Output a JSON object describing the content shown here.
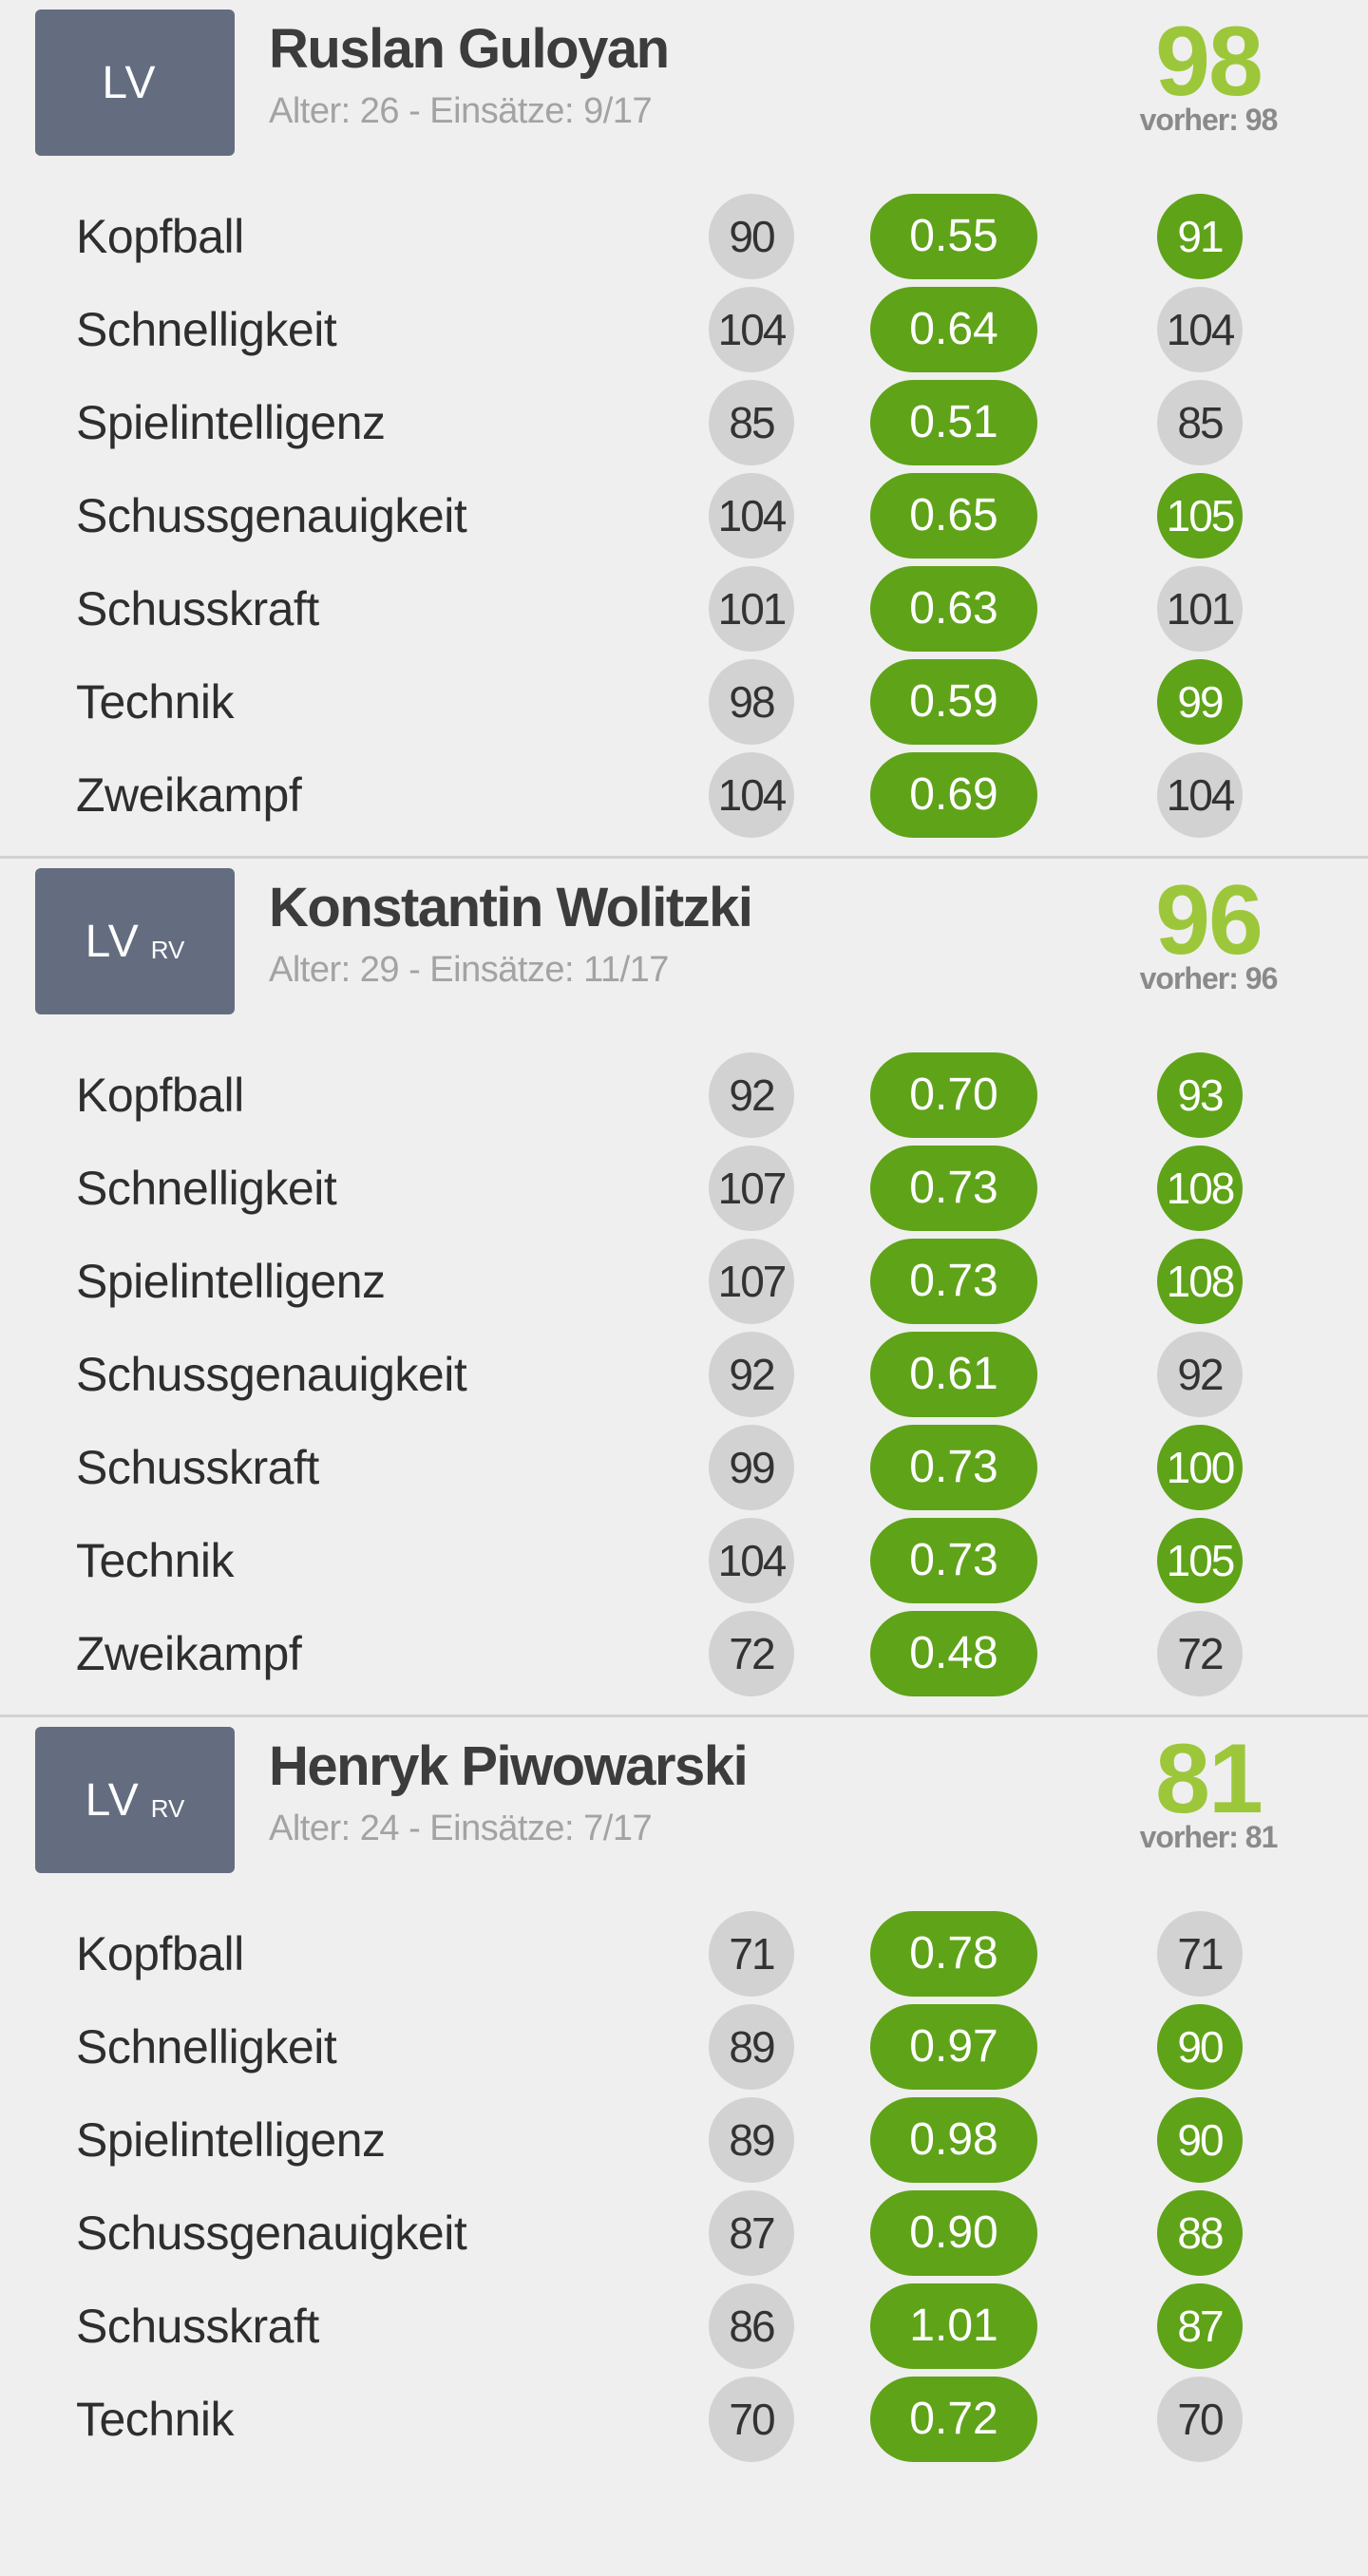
{
  "colors": {
    "background": "#efefef",
    "badge": "#646d80",
    "rating": "#9dc73a",
    "factor_pill": "#5fa319",
    "up_circle": "#5fa319",
    "neutral_circle": "#d2d2d2",
    "divider": "#d2d2d2"
  },
  "players": [
    {
      "position": "LV",
      "position_secondary": "",
      "name": "Ruslan Guloyan",
      "meta": "Alter: 26 - Einsätze: 9/17",
      "rating": "98",
      "previous": "vorher: 98",
      "attributes": [
        {
          "label": "Kopfball",
          "current": "90",
          "factor": "0.55",
          "next": "91",
          "trend": "up"
        },
        {
          "label": "Schnelligkeit",
          "current": "104",
          "factor": "0.64",
          "next": "104",
          "trend": "same"
        },
        {
          "label": "Spielintelligenz",
          "current": "85",
          "factor": "0.51",
          "next": "85",
          "trend": "same"
        },
        {
          "label": "Schussgenauigkeit",
          "current": "104",
          "factor": "0.65",
          "next": "105",
          "trend": "up"
        },
        {
          "label": "Schusskraft",
          "current": "101",
          "factor": "0.63",
          "next": "101",
          "trend": "same"
        },
        {
          "label": "Technik",
          "current": "98",
          "factor": "0.59",
          "next": "99",
          "trend": "up"
        },
        {
          "label": "Zweikampf",
          "current": "104",
          "factor": "0.69",
          "next": "104",
          "trend": "same"
        }
      ]
    },
    {
      "position": "LV",
      "position_secondary": "RV",
      "name": "Konstantin Wolitzki",
      "meta": "Alter: 29 - Einsätze: 11/17",
      "rating": "96",
      "previous": "vorher: 96",
      "attributes": [
        {
          "label": "Kopfball",
          "current": "92",
          "factor": "0.70",
          "next": "93",
          "trend": "up"
        },
        {
          "label": "Schnelligkeit",
          "current": "107",
          "factor": "0.73",
          "next": "108",
          "trend": "up"
        },
        {
          "label": "Spielintelligenz",
          "current": "107",
          "factor": "0.73",
          "next": "108",
          "trend": "up"
        },
        {
          "label": "Schussgenauigkeit",
          "current": "92",
          "factor": "0.61",
          "next": "92",
          "trend": "same"
        },
        {
          "label": "Schusskraft",
          "current": "99",
          "factor": "0.73",
          "next": "100",
          "trend": "up"
        },
        {
          "label": "Technik",
          "current": "104",
          "factor": "0.73",
          "next": "105",
          "trend": "up"
        },
        {
          "label": "Zweikampf",
          "current": "72",
          "factor": "0.48",
          "next": "72",
          "trend": "same"
        }
      ]
    },
    {
      "position": "LV",
      "position_secondary": "RV",
      "name": "Henryk Piwowarski",
      "meta": "Alter: 24 - Einsätze: 7/17",
      "rating": "81",
      "previous": "vorher: 81",
      "attributes": [
        {
          "label": "Kopfball",
          "current": "71",
          "factor": "0.78",
          "next": "71",
          "trend": "same"
        },
        {
          "label": "Schnelligkeit",
          "current": "89",
          "factor": "0.97",
          "next": "90",
          "trend": "up"
        },
        {
          "label": "Spielintelligenz",
          "current": "89",
          "factor": "0.98",
          "next": "90",
          "trend": "up"
        },
        {
          "label": "Schussgenauigkeit",
          "current": "87",
          "factor": "0.90",
          "next": "88",
          "trend": "up"
        },
        {
          "label": "Schusskraft",
          "current": "86",
          "factor": "1.01",
          "next": "87",
          "trend": "up"
        },
        {
          "label": "Technik",
          "current": "70",
          "factor": "0.72",
          "next": "70",
          "trend": "same"
        }
      ]
    }
  ]
}
